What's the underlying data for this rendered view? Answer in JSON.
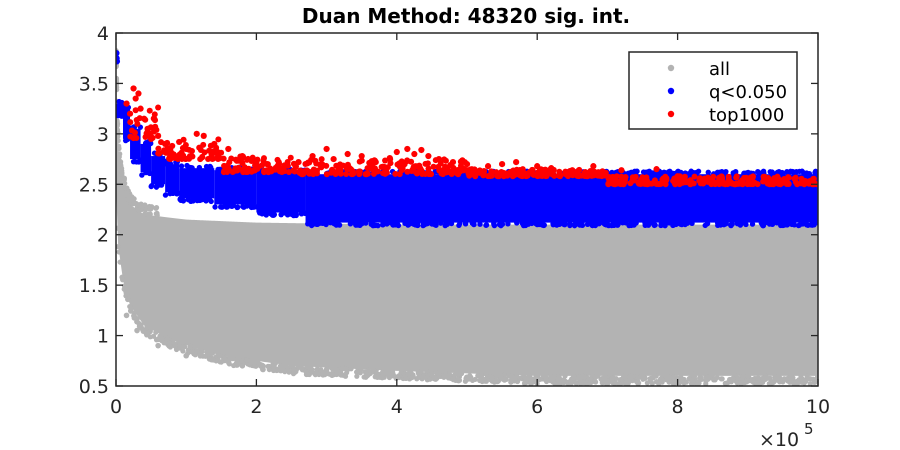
{
  "chart_data": {
    "type": "scatter",
    "title": "Duan Method: 48320 sig. int.",
    "xlabel": "",
    "ylabel": "",
    "x_multiplier_label": "×10",
    "x_multiplier_exponent": "5",
    "xlim": [
      0,
      1000000
    ],
    "ylim": [
      0.5,
      4
    ],
    "x_ticks": [
      0,
      200000,
      400000,
      600000,
      800000,
      1000000
    ],
    "x_tick_labels": [
      "0",
      "2",
      "4",
      "6",
      "8",
      "10"
    ],
    "y_ticks": [
      0.5,
      1,
      1.5,
      2,
      2.5,
      3,
      3.5,
      4
    ],
    "y_tick_labels": [
      "0.5",
      "1",
      "1.5",
      "2",
      "2.5",
      "3",
      "3.5",
      "4"
    ],
    "grid": false,
    "legend_position": "top-right",
    "series": [
      {
        "name": "all",
        "color": "#b3b3b3",
        "band": {
          "upper": [
            [
              0,
              3.75
            ],
            [
              2000,
              3.0
            ],
            [
              5000,
              2.7
            ],
            [
              10000,
              2.5
            ],
            [
              20000,
              2.3
            ],
            [
              40000,
              2.2
            ],
            [
              100000,
              2.15
            ],
            [
              200000,
              2.12
            ],
            [
              400000,
              2.1
            ],
            [
              1000000,
              2.1
            ]
          ],
          "lower": [
            [
              0,
              2.5
            ],
            [
              3000,
              1.9
            ],
            [
              10000,
              1.55
            ],
            [
              20000,
              1.3
            ],
            [
              40000,
              1.1
            ],
            [
              80000,
              0.95
            ],
            [
              150000,
              0.8
            ],
            [
              250000,
              0.7
            ],
            [
              400000,
              0.65
            ],
            [
              600000,
              0.6
            ],
            [
              1000000,
              0.6
            ]
          ]
        },
        "points": [
          [
            2000,
            3.1
          ],
          [
            5000,
            2.8
          ],
          [
            8000,
            2.6
          ],
          [
            15000,
            1.2
          ],
          [
            30000,
            1.05
          ],
          [
            60000,
            0.9
          ],
          [
            100000,
            0.8
          ],
          [
            180000,
            0.7
          ],
          [
            300000,
            0.66
          ],
          [
            450000,
            0.62
          ],
          [
            600000,
            0.6
          ],
          [
            750000,
            0.58
          ],
          [
            900000,
            0.6
          ],
          [
            650000,
            0.56
          ],
          [
            820000,
            0.62
          ]
        ]
      },
      {
        "name": "q<0.050",
        "color": "#0000ff",
        "steps": [
          [
            0,
            3.3,
            3.2
          ],
          [
            10000,
            3.25,
            2.95
          ],
          [
            20000,
            3.05,
            2.75
          ],
          [
            35000,
            2.9,
            2.62
          ],
          [
            50000,
            2.78,
            2.5
          ],
          [
            70000,
            2.7,
            2.42
          ],
          [
            90000,
            2.66,
            2.36
          ],
          [
            140000,
            2.64,
            2.3
          ],
          [
            200000,
            2.62,
            2.22
          ],
          [
            270000,
            2.6,
            2.12
          ],
          [
            1000000,
            2.58,
            2.12
          ]
        ],
        "points": [
          [
            500,
            3.8
          ],
          [
            800,
            3.75
          ],
          [
            1200,
            3.72
          ],
          [
            8000,
            3.22
          ],
          [
            12000,
            3.25
          ],
          [
            15000,
            3.18
          ]
        ]
      },
      {
        "name": "top1000",
        "color": "#ff0000",
        "points": [
          [
            15000,
            3.3
          ],
          [
            20000,
            3.2
          ],
          [
            25000,
            3.45
          ],
          [
            28000,
            3.35
          ],
          [
            32000,
            3.4
          ],
          [
            35000,
            3.25
          ],
          [
            40000,
            3.15
          ],
          [
            45000,
            3.05
          ],
          [
            50000,
            2.95
          ],
          [
            60000,
            2.98
          ],
          [
            70000,
            2.9
          ],
          [
            80000,
            2.88
          ],
          [
            90000,
            2.92
          ],
          [
            100000,
            2.85
          ],
          [
            115000,
            3.0
          ],
          [
            125000,
            2.98
          ],
          [
            140000,
            2.9
          ],
          [
            160000,
            2.85
          ],
          [
            180000,
            2.78
          ],
          [
            200000,
            2.72
          ],
          [
            215000,
            2.7
          ],
          [
            230000,
            2.68
          ],
          [
            260000,
            2.72
          ],
          [
            280000,
            2.78
          ],
          [
            300000,
            2.85
          ],
          [
            310000,
            2.75
          ],
          [
            330000,
            2.8
          ],
          [
            350000,
            2.78
          ],
          [
            370000,
            2.72
          ],
          [
            390000,
            2.76
          ],
          [
            400000,
            2.82
          ],
          [
            415000,
            2.85
          ],
          [
            425000,
            2.8
          ],
          [
            435000,
            2.84
          ],
          [
            445000,
            2.78
          ],
          [
            460000,
            2.75
          ],
          [
            480000,
            2.72
          ],
          [
            500000,
            2.7
          ],
          [
            530000,
            2.68
          ],
          [
            550000,
            2.7
          ],
          [
            570000,
            2.72
          ],
          [
            600000,
            2.68
          ],
          [
            620000,
            2.66
          ],
          [
            650000,
            2.64
          ],
          [
            680000,
            2.68
          ],
          [
            720000,
            2.64
          ],
          [
            770000,
            2.65
          ],
          [
            800000,
            2.58
          ]
        ],
        "band_segments": [
          [
            20000,
            60000,
            2.95,
            3.3
          ],
          [
            60000,
            150000,
            2.75,
            2.95
          ],
          [
            150000,
            260000,
            2.62,
            2.78
          ],
          [
            260000,
            500000,
            2.6,
            2.75
          ],
          [
            500000,
            700000,
            2.58,
            2.65
          ],
          [
            700000,
            1000000,
            2.5,
            2.58
          ]
        ]
      }
    ]
  }
}
